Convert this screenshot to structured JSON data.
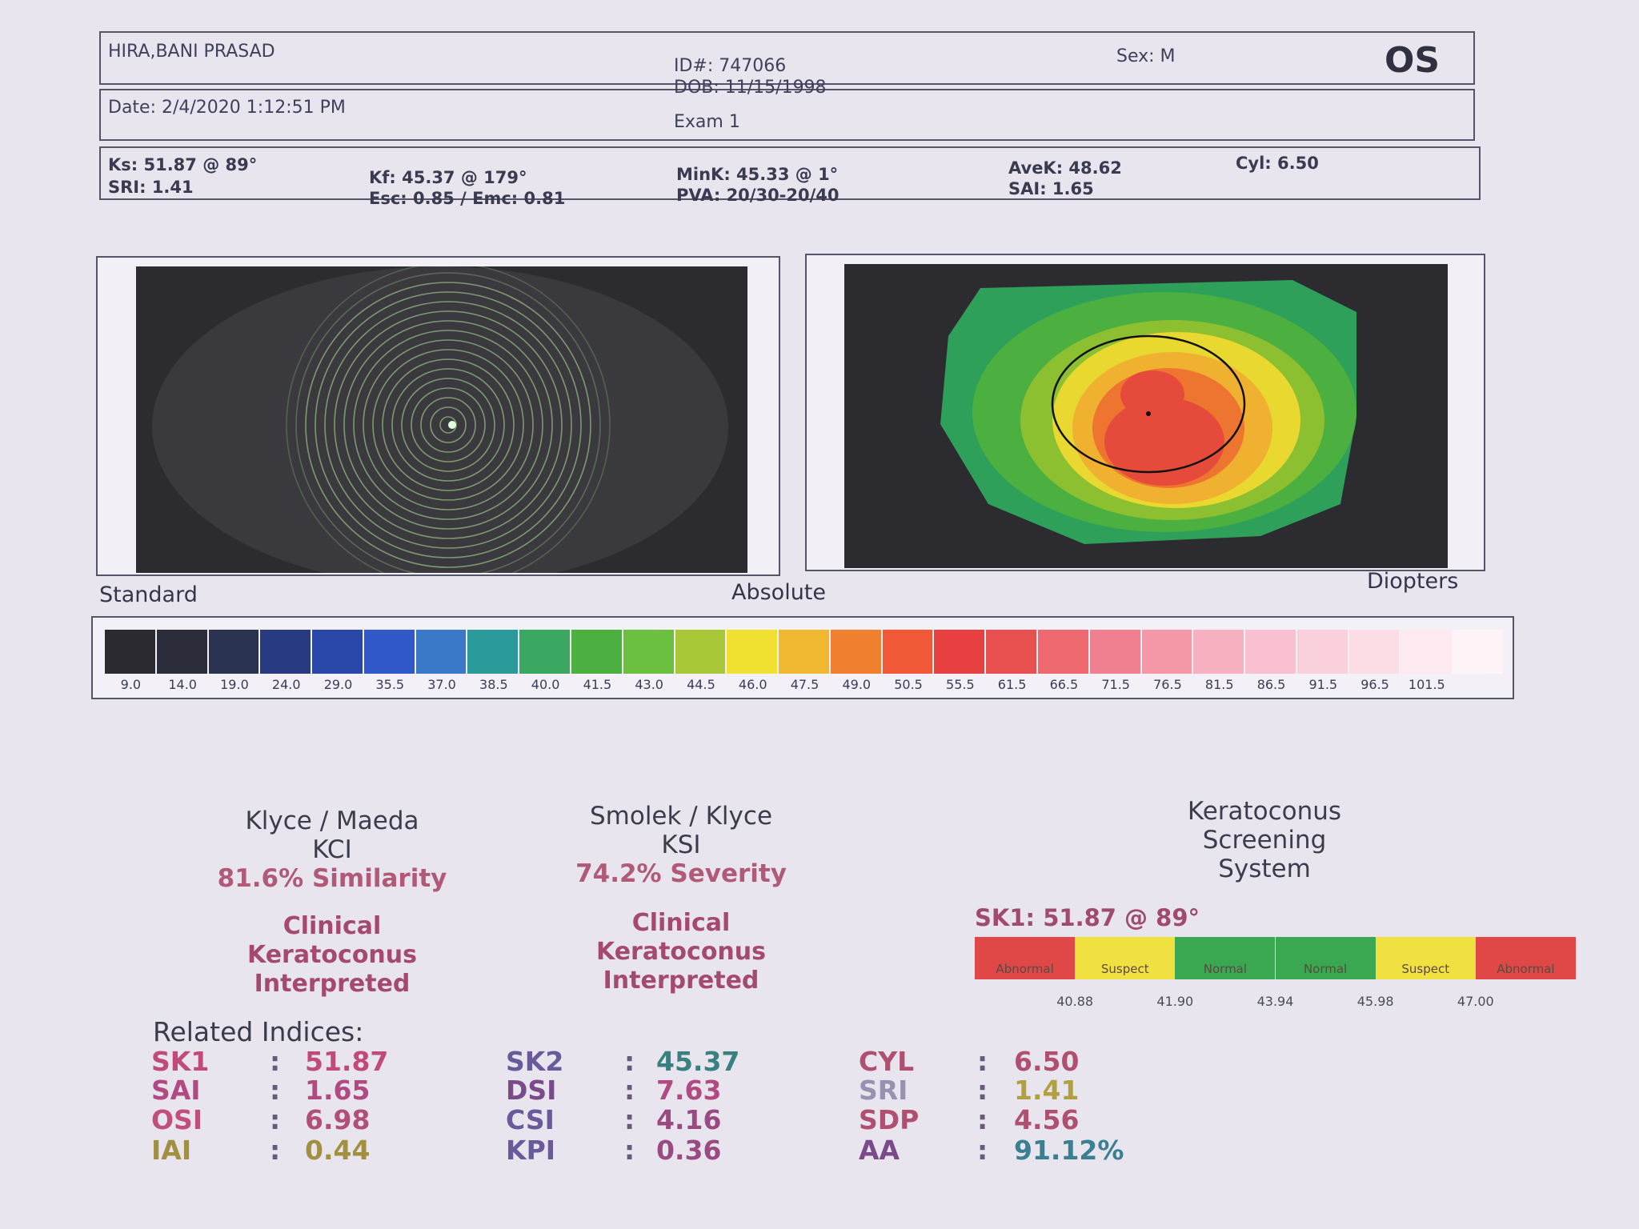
{
  "header": {
    "name": "HIRA,BANI PRASAD",
    "id": "ID#: 747066",
    "dob": "DOB: 11/15/1998",
    "sex": "Sex: M",
    "eye": "OS",
    "date": "Date: 2/4/2020 1:12:51 PM",
    "exam": "Exam 1"
  },
  "keratometry": [
    "Ks: 51.87 @ 89°",
    "SRI: 1.41",
    "Kf: 45.37 @ 179°",
    "Esc: 0.85 / Emc: 0.81",
    "MinK: 45.33 @ 1°",
    "PVA: 20/30-20/40",
    "AveK: 48.62",
    "SAI: 1.65",
    "Cyl: 6.50"
  ],
  "maps": {
    "left_label": "Standard",
    "center_label": "Absolute",
    "right_label": "Diopters"
  },
  "scale": [
    "9.0",
    "14.0",
    "19.0",
    "24.0",
    "29.0",
    "35.5",
    "37.0",
    "38.5",
    "40.0",
    "41.5",
    "43.0",
    "44.5",
    "46.0",
    "47.5",
    "49.0",
    "50.5",
    "55.5",
    "61.5",
    "66.5",
    "71.5",
    "76.5",
    "81.5",
    "86.5",
    "91.5",
    "96.5",
    "101.5"
  ],
  "kci": {
    "title": "Klyce / Maeda",
    "abbrev": "KCI",
    "result": "81.6% Similarity",
    "interpretation": [
      "Clinical",
      "Keratoconus",
      "Interpreted"
    ]
  },
  "ksi": {
    "title": "Smolek / Klyce",
    "abbrev": "KSI",
    "result": "74.2% Severity",
    "interpretation": [
      "Clinical",
      "Keratoconus",
      "Interpreted"
    ]
  },
  "kss": {
    "title": [
      "Keratoconus",
      "Screening",
      "System"
    ],
    "sk1": "SK1: 51.87 @ 89°",
    "segments": [
      "Abnormal",
      "Suspect",
      "Normal",
      "Normal",
      "Suspect",
      "Abnormal"
    ],
    "ticks": [
      "40.88",
      "41.90",
      "43.94",
      "45.98",
      "47.00"
    ]
  },
  "related": {
    "title": "Related Indices:",
    "separator": ":",
    "columns": [
      [
        [
          "SK1",
          "51.87"
        ],
        [
          "SAI",
          "1.65"
        ],
        [
          "OSI",
          "6.98"
        ],
        [
          "IAI",
          "0.44"
        ]
      ],
      [
        [
          "SK2",
          "45.37"
        ],
        [
          "DSI",
          "7.63"
        ],
        [
          "CSI",
          "4.16"
        ],
        [
          "KPI",
          "0.36"
        ]
      ],
      [
        [
          "CYL",
          "6.50"
        ],
        [
          "SRI",
          "1.41"
        ],
        [
          "SDP",
          "4.56"
        ],
        [
          "AA",
          "91.12%"
        ]
      ]
    ]
  }
}
